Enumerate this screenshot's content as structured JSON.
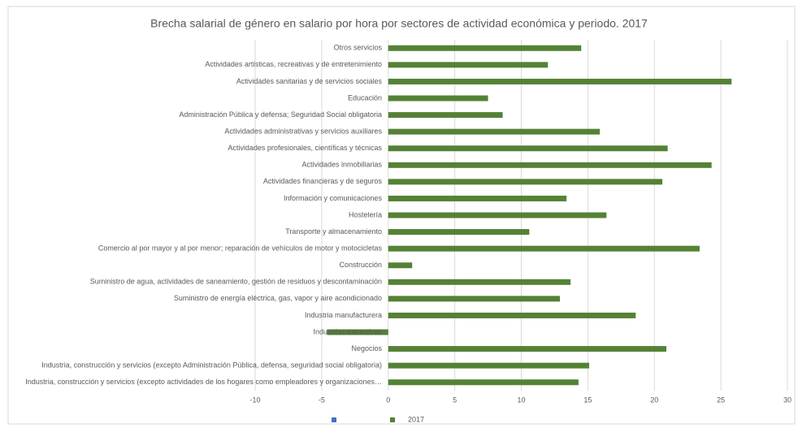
{
  "chart_data": {
    "type": "bar",
    "orientation": "horizontal",
    "title": "Brecha salarial de género en salario por hora por sectores de actividad económica y periodo. 2017",
    "categories": [
      "Otros servicios",
      "Actividades artísticas, recreativas y de entretenimiento",
      "Actividades sanitarias y de servicios sociales",
      "Educación",
      "Administración Pública y defensa; Seguridad Social obligatoria",
      "Actividades administrativas y servicios auxiliares",
      "Actividades profesionales, científicas y técnicas",
      "Actividades inmobiliarias",
      "Actividades financieras y de seguros",
      "Información y comunicaciones",
      "Hostelería",
      "Transporte y almacenamiento",
      "Comercio al por mayor y al por menor; reparación de vehículos de motor y motocicletas",
      "Construcción",
      "Suministro de agua, actividades de saneamiento, gestión de residuos y descontaminación",
      "Suministro de energía eléctrica, gas, vapor y aire acondicionado",
      "Industria manufacturera",
      "Industrias extractivas",
      "Negocios",
      "Industria, construcción y servicios (excepto Administración Pública, defensa, seguridad social obligatoria)",
      "Industria, construcción y servicios (excepto actividades de los hogares como empleadores y organizaciones…"
    ],
    "series": [
      {
        "name": "2017",
        "color": "#548235",
        "values": [
          14.5,
          12.0,
          25.8,
          7.5,
          8.6,
          15.9,
          21.0,
          24.3,
          20.6,
          13.4,
          16.4,
          10.6,
          23.4,
          1.8,
          13.7,
          12.9,
          18.6,
          -4.6,
          20.9,
          15.1,
          14.3
        ]
      }
    ],
    "xlim": [
      -10,
      30
    ],
    "xticks": [
      -10,
      -5,
      0,
      5,
      10,
      15,
      20,
      25,
      30
    ],
    "grid": true,
    "legend": "bottom"
  }
}
